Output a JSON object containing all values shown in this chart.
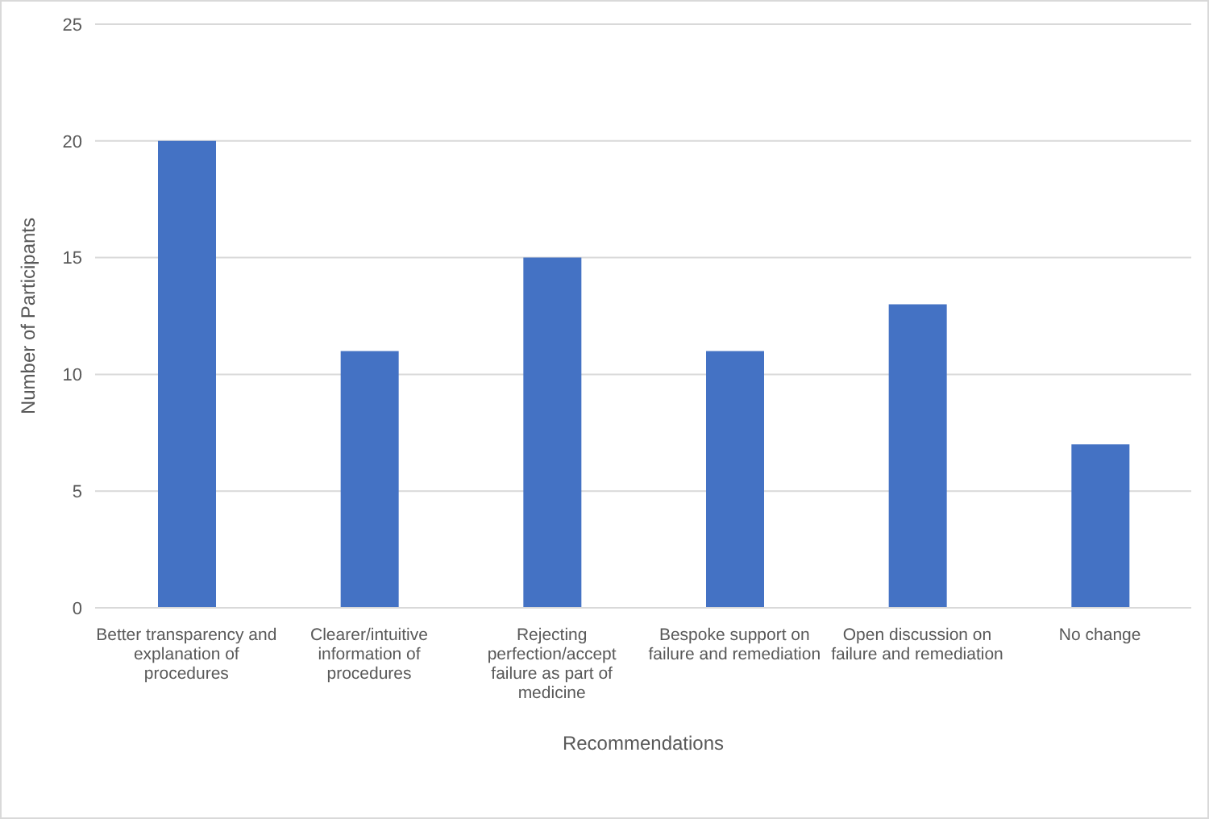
{
  "chart_data": {
    "type": "bar",
    "xlabel": "Recommendations",
    "ylabel": "Number of Participants",
    "categories": [
      "Better transparency and explanation of procedures",
      "Clearer/intuitive information of procedures",
      "Rejecting perfection/accept failure as part of medicine",
      "Bespoke support on failure and remediation",
      "Open discussion on failure and remediation",
      "No change"
    ],
    "values": [
      20,
      11,
      15,
      11,
      13,
      7
    ],
    "color": "#4472c4",
    "ylim": [
      0,
      25
    ],
    "yticks": [
      0,
      5,
      10,
      15,
      20,
      25
    ],
    "grid": "y"
  }
}
